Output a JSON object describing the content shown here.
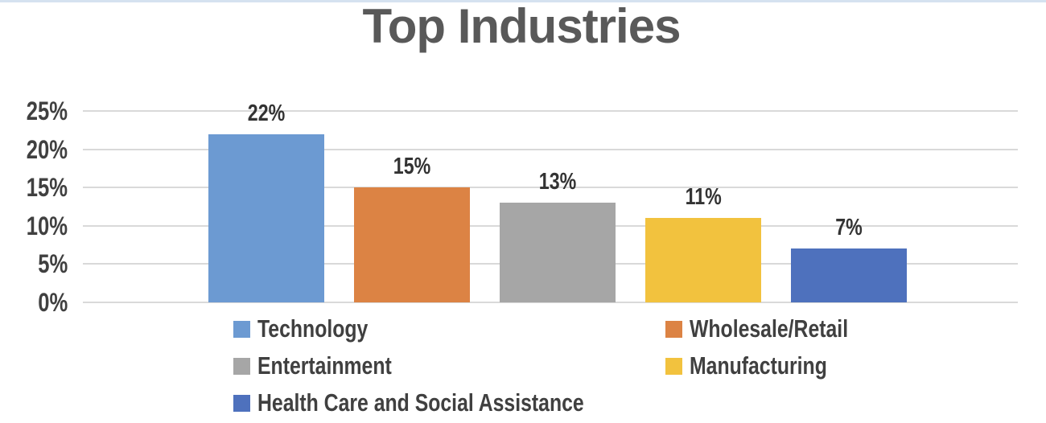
{
  "title": "Top Industries",
  "chart_data": {
    "type": "bar",
    "title": "Top Industries",
    "categories": [
      "Technology",
      "Wholesale/Retail",
      "Entertainment",
      "Manufacturing",
      "Health Care and Social Assistance"
    ],
    "values": [
      22,
      15,
      13,
      11,
      7
    ],
    "data_labels": [
      "22%",
      "15%",
      "13%",
      "11%",
      "7%"
    ],
    "bar_colors": [
      "#6C9AD2",
      "#DC8344",
      "#A6A6A6",
      "#F2C23E",
      "#4E71BD"
    ],
    "y_ticks": [
      "0%",
      "5%",
      "10%",
      "15%",
      "20%",
      "25%"
    ],
    "y_tick_values": [
      0,
      5,
      10,
      15,
      20,
      25
    ],
    "ylim": [
      0,
      25
    ],
    "xlabel": "",
    "ylabel": "",
    "grid": true,
    "legend_position": "bottom"
  },
  "colors": {
    "title_text": "#595959",
    "axis_text": "#404040",
    "gridline": "#D9D9D9",
    "background": "#FFFFFF",
    "bottom_strip": "#D5E2F0"
  }
}
